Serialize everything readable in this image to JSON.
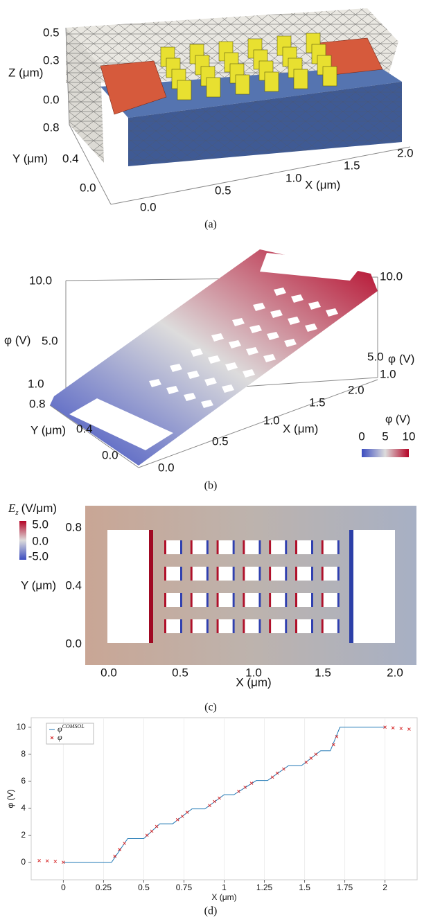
{
  "panel_a": {
    "caption": "(a)",
    "z_label": "Z (μm)",
    "z_ticks": [
      "0.5",
      "0.3",
      "0.0"
    ],
    "y_label": "Y (μm)",
    "y_ticks": [
      "0.8",
      "0.4",
      "0.0"
    ],
    "x_label": "X (μm)",
    "x_ticks": [
      "0.0",
      "0.5",
      "1.0",
      "1.5",
      "2.0"
    ]
  },
  "panel_b": {
    "caption": "(b)",
    "left_label": "φ (V)",
    "left_ticks": [
      "10.0",
      "5.0",
      "1.0"
    ],
    "right_label": "φ (V)",
    "right_ticks": [
      "10.0",
      "5.0",
      "1.0"
    ],
    "y_label": "Y (μm)",
    "y_ticks": [
      "0.8",
      "0.4",
      "0.0"
    ],
    "x_label": "X (μm)",
    "x_ticks": [
      "0.0",
      "0.5",
      "1.0",
      "1.5",
      "2.0"
    ],
    "colorbar": {
      "title": "φ (V)",
      "ticks": [
        "0",
        "5",
        "10"
      ]
    }
  },
  "panel_c": {
    "caption": "(c)",
    "colorbar": {
      "symbol": "E",
      "subscript": "z",
      "unit": "(V/μm)",
      "ticks": [
        "5.0",
        "0.0",
        "-5.0"
      ]
    },
    "x_label": "X (μm)",
    "x_ticks": [
      "0.0",
      "0.5",
      "1.0",
      "1.5",
      "2.0"
    ],
    "y_label": "Y (μm)",
    "y_ticks": [
      "0.8",
      "0.4",
      "0.0"
    ]
  },
  "chart_data": {
    "type": "line",
    "caption": "(d)",
    "x_label": "X (μm)",
    "y_label": "φ (V)",
    "xlim": [
      -0.2,
      2.2
    ],
    "xticks": [
      0,
      0.25,
      0.5,
      0.75,
      1,
      1.25,
      1.5,
      1.75,
      2
    ],
    "ylim": [
      -1.3,
      10.7
    ],
    "yticks": [
      0,
      2,
      4,
      6,
      8,
      10
    ],
    "grid": true,
    "legend": "upper left",
    "series": [
      {
        "name": "φ",
        "name_superscript": "COMSOL",
        "color": "#1f77b4",
        "marker": "none",
        "x": [
          0,
          0.3,
          0.4,
          0.5,
          0.6,
          0.68,
          0.8,
          0.88,
          1.0,
          1.06,
          1.2,
          1.27,
          1.4,
          1.48,
          1.6,
          1.66,
          1.72,
          2.0
        ],
        "values": [
          0,
          0,
          1.75,
          1.75,
          2.85,
          2.85,
          3.95,
          3.95,
          5.0,
          5.0,
          6.05,
          6.05,
          7.15,
          7.15,
          8.25,
          8.25,
          10,
          10
        ]
      },
      {
        "name": "φ",
        "color": "#d62728",
        "marker": "x",
        "x": [
          -0.15,
          -0.1,
          -0.05,
          0,
          0.32,
          0.35,
          0.38,
          0.52,
          0.55,
          0.58,
          0.71,
          0.74,
          0.77,
          0.91,
          0.94,
          0.97,
          1.09,
          1.13,
          1.17,
          1.3,
          1.33,
          1.37,
          1.51,
          1.54,
          1.57,
          1.68,
          1.7,
          2.0,
          2.05,
          2.1,
          2.15
        ],
        "values": [
          0.12,
          0.1,
          0.06,
          0,
          0.45,
          0.95,
          1.4,
          2.0,
          2.3,
          2.65,
          3.15,
          3.4,
          3.7,
          4.2,
          4.5,
          4.75,
          5.25,
          5.55,
          5.85,
          6.3,
          6.6,
          6.9,
          7.4,
          7.7,
          8.0,
          8.7,
          9.3,
          10.0,
          9.95,
          9.9,
          9.85
        ]
      }
    ]
  }
}
